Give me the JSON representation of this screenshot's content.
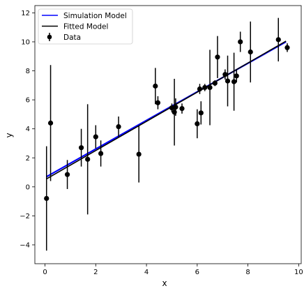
{
  "chart_data": {
    "type": "scatter",
    "title": "",
    "xlabel": "x",
    "ylabel": "y",
    "xlim": [
      -0.4,
      10.1
    ],
    "ylim": [
      -5.3,
      12.5
    ],
    "xticks": [
      0,
      2,
      4,
      6,
      8,
      10
    ],
    "yticks": [
      -4,
      -2,
      0,
      2,
      4,
      6,
      8,
      10,
      12
    ],
    "grid": false,
    "legend_position": "top-left",
    "series": [
      {
        "name": "Simulation Model",
        "kind": "line",
        "color": "#0000ff",
        "x": [
          0.06,
          9.5
        ],
        "y": [
          0.7,
          10.0
        ]
      },
      {
        "name": "Fitted Model",
        "kind": "line",
        "color": "#000000",
        "x": [
          0.06,
          9.5
        ],
        "y": [
          0.55,
          10.05
        ]
      },
      {
        "name": "Data",
        "kind": "errorbar",
        "color": "#000000",
        "points": [
          {
            "x": 0.06,
            "y": -0.8,
            "err": 3.6
          },
          {
            "x": 0.22,
            "y": 4.4,
            "err": 4.0
          },
          {
            "x": 0.88,
            "y": 0.85,
            "err": 1.0
          },
          {
            "x": 1.43,
            "y": 2.7,
            "err": 1.3
          },
          {
            "x": 1.68,
            "y": 1.9,
            "err": 3.8
          },
          {
            "x": 2.0,
            "y": 3.45,
            "err": 0.8
          },
          {
            "x": 2.2,
            "y": 2.3,
            "err": 0.9
          },
          {
            "x": 2.9,
            "y": 4.15,
            "err": 0.7
          },
          {
            "x": 3.7,
            "y": 2.25,
            "err": 1.95
          },
          {
            "x": 4.35,
            "y": 6.95,
            "err": 1.25
          },
          {
            "x": 4.45,
            "y": 5.8,
            "err": 0.45
          },
          {
            "x": 5.0,
            "y": 5.45,
            "err": 0.3
          },
          {
            "x": 5.1,
            "y": 5.15,
            "err": 2.3
          },
          {
            "x": 5.15,
            "y": 5.5,
            "err": 0.6
          },
          {
            "x": 5.4,
            "y": 5.4,
            "err": 0.35
          },
          {
            "x": 6.0,
            "y": 4.35,
            "err": 1.0
          },
          {
            "x": 6.1,
            "y": 6.75,
            "err": 0.35
          },
          {
            "x": 6.15,
            "y": 5.1,
            "err": 0.8
          },
          {
            "x": 6.3,
            "y": 6.85,
            "err": 0.25
          },
          {
            "x": 6.5,
            "y": 6.85,
            "err": 2.6
          },
          {
            "x": 6.7,
            "y": 7.15,
            "err": 0.2
          },
          {
            "x": 6.8,
            "y": 8.95,
            "err": 1.45
          },
          {
            "x": 7.1,
            "y": 7.75,
            "err": 0.35
          },
          {
            "x": 7.2,
            "y": 7.3,
            "err": 1.75
          },
          {
            "x": 7.45,
            "y": 7.25,
            "err": 2.0
          },
          {
            "x": 7.55,
            "y": 7.65,
            "err": 0.45
          },
          {
            "x": 7.7,
            "y": 10.0,
            "err": 0.7
          },
          {
            "x": 8.1,
            "y": 9.3,
            "err": 2.1
          },
          {
            "x": 9.2,
            "y": 10.15,
            "err": 1.5
          },
          {
            "x": 9.55,
            "y": 9.6,
            "err": 0.3
          }
        ]
      }
    ]
  }
}
